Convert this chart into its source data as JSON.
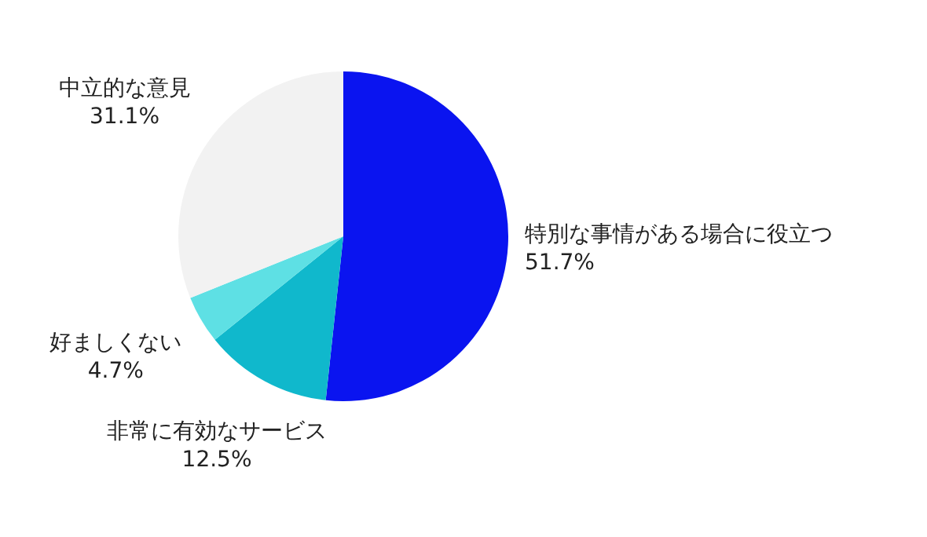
{
  "chart_data": {
    "type": "pie",
    "categories": [
      "特別な事情がある場合に役立つ",
      "非常に有効なサービス",
      "好ましくない",
      "中立的な意見"
    ],
    "values": [
      51.7,
      12.5,
      4.7,
      31.1
    ],
    "value_labels": [
      "51.7%",
      "12.5%",
      "4.7%",
      "31.1%"
    ],
    "colors": [
      "#0a14f0",
      "#10b8cc",
      "#5ee0e4",
      "#f2f2f2"
    ]
  }
}
